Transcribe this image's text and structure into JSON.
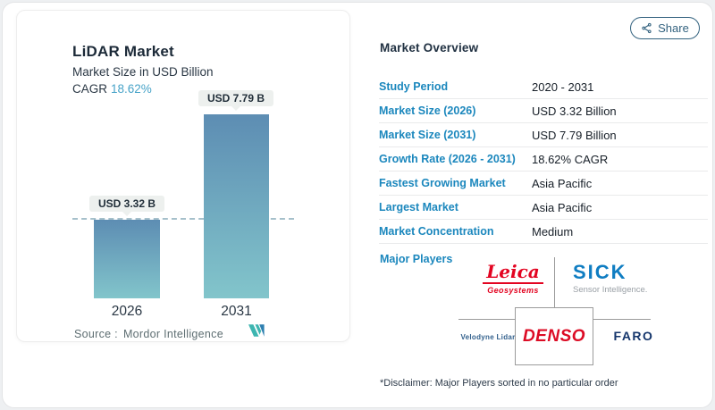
{
  "share": {
    "label": "Share"
  },
  "chart_card": {
    "title": "LiDAR Market",
    "subtitle": "Market Size in USD Billion",
    "cagr_label": "CAGR",
    "cagr_value": "18.62%",
    "source_label": "Source :",
    "source_value": "Mordor Intelligence"
  },
  "chart_data": {
    "type": "bar",
    "title": "LiDAR Market",
    "subtitle": "Market Size in USD Billion",
    "unit": "USD Billion",
    "categories": [
      "2026",
      "2031"
    ],
    "values": [
      3.32,
      7.79
    ],
    "value_labels": [
      "USD 3.32 B",
      "USD 7.79 B"
    ],
    "ylim": [
      0,
      8.6
    ],
    "grid": false,
    "reference_line": {
      "value": 3.32,
      "style": "dashed"
    },
    "bar_gradient": [
      "#5d8db3",
      "#82c5cb"
    ]
  },
  "overview": {
    "heading": "Market Overview",
    "rows": [
      {
        "label": "Study Period",
        "value": "2020 - 2031"
      },
      {
        "label": "Market Size (2026)",
        "value": "USD 3.32 Billion"
      },
      {
        "label": "Market Size (2031)",
        "value": "USD 7.79 Billion"
      },
      {
        "label": "Growth Rate (2026 - 2031)",
        "value": "18.62% CAGR"
      },
      {
        "label": "Fastest Growing Market",
        "value": "Asia Pacific"
      },
      {
        "label": "Largest Market",
        "value": "Asia Pacific"
      },
      {
        "label": "Market Concentration",
        "value": "Medium"
      }
    ],
    "major_players_label": "Major Players",
    "players": [
      {
        "name": "Leica Geosystems",
        "line1": "Leica",
        "line2": "Geosystems",
        "color": "#e30421"
      },
      {
        "name": "SICK",
        "line1": "SICK",
        "line2": "Sensor Intelligence.",
        "color": "#0f7dc2"
      },
      {
        "name": "Velodyne Lidar",
        "line1": "Velodyne Lidar",
        "color": "#33618d"
      },
      {
        "name": "DENSO",
        "line1": "DENSO",
        "color": "#dc0c25"
      },
      {
        "name": "FARO",
        "line1": "FARO",
        "color": "#14356b"
      }
    ],
    "disclaimer": "*Disclaimer: Major Players sorted in no particular order"
  },
  "colors": {
    "accent_blue": "#1b87bd",
    "cagr_teal": "#47a3c8",
    "share_outline": "#33627f",
    "dash_line": "#a6c0cb",
    "tag_bg": "#edf0ee",
    "dark_text": "#1c2a38",
    "mordor_teal": "#3db5b0",
    "mordor_blue": "#2e7fb0"
  }
}
